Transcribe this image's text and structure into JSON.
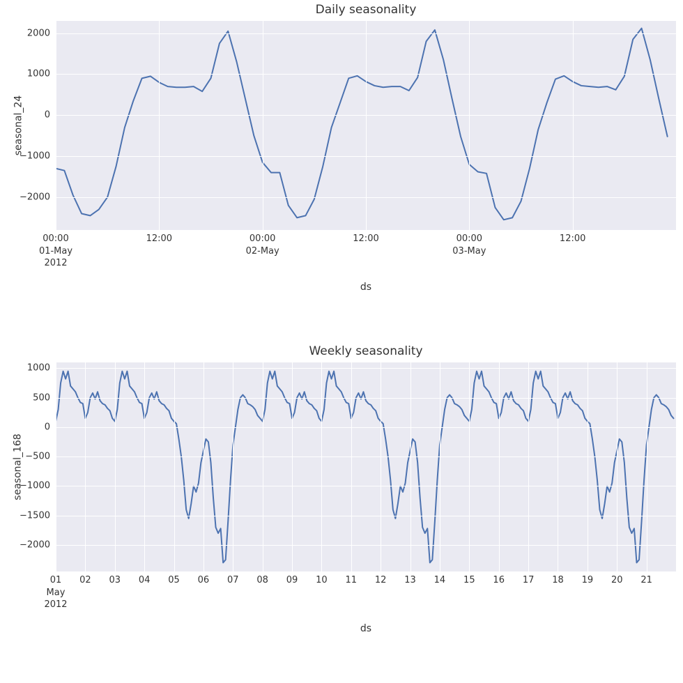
{
  "figure_width": 980,
  "figure_height": 980,
  "background_color": "#ffffff",
  "panel_background": "#eaeaf2",
  "grid_color": "#ffffff",
  "text_color": "#333333",
  "line_color": "#4c72b0",
  "line_width": 2.0,
  "font_family": "DejaVu Sans",
  "daily": {
    "type": "line",
    "title": "Daily seasonality",
    "title_fontsize": 17,
    "ylabel": "seasonal_24",
    "xlabel": "ds",
    "label_fontsize": 14,
    "ylim": [
      -2800,
      2300
    ],
    "yticks": [
      -2000,
      -1000,
      0,
      1000,
      2000
    ],
    "ytick_labels": [
      "−2000",
      "−1000",
      "0",
      "1000",
      "2000"
    ],
    "xlim_hours": [
      0,
      72
    ],
    "x_gridlines_hours": [
      0,
      12,
      24,
      36,
      48,
      60
    ],
    "xticks": [
      {
        "x_hours": 0,
        "label_lines": [
          "00:00",
          "01-May",
          "2012"
        ]
      },
      {
        "x_hours": 12,
        "label_lines": [
          "12:00"
        ]
      },
      {
        "x_hours": 24,
        "label_lines": [
          "00:00",
          "02-May"
        ]
      },
      {
        "x_hours": 36,
        "label_lines": [
          "12:00"
        ]
      },
      {
        "x_hours": 48,
        "label_lines": [
          "00:00",
          "03-May"
        ]
      },
      {
        "x_hours": 60,
        "label_lines": [
          "12:00"
        ]
      }
    ],
    "hourly_values": [
      -1300,
      -1350,
      -1950,
      -2400,
      -2450,
      -2300,
      -2000,
      -1250,
      -300,
      350,
      900,
      950,
      800,
      700,
      680,
      680,
      700,
      580,
      900,
      1750,
      2050,
      1300,
      400,
      -500,
      -1150,
      -1400,
      -1400,
      -2200,
      -2500,
      -2450,
      -2050,
      -1250,
      -300,
      300,
      900,
      960,
      820,
      720,
      680,
      700,
      700,
      600,
      920,
      1800,
      2080,
      1350,
      400,
      -520,
      -1200,
      -1380,
      -1420,
      -2250,
      -2550,
      -2500,
      -2100,
      -1300,
      -350,
      300,
      880,
      960,
      820,
      720,
      700,
      680,
      700,
      620,
      950,
      1850,
      2120,
      1350,
      400,
      -520
    ]
  },
  "weekly": {
    "type": "line",
    "title": "Weekly seasonality",
    "title_fontsize": 17,
    "ylabel": "seasonal_168",
    "xlabel": "ds",
    "label_fontsize": 14,
    "ylim": [
      -2450,
      1100
    ],
    "yticks": [
      -2000,
      -1500,
      -1000,
      -500,
      0,
      500,
      1000
    ],
    "ytick_labels": [
      "−2000",
      "−1500",
      "−1000",
      "−500",
      "0",
      "500",
      "1000"
    ],
    "xlim_days": [
      0,
      21
    ],
    "xticks": [
      {
        "x_days": 0,
        "label_lines": [
          "01",
          "May",
          "2012"
        ]
      },
      {
        "x_days": 1,
        "label_lines": [
          "02"
        ]
      },
      {
        "x_days": 2,
        "label_lines": [
          "03"
        ]
      },
      {
        "x_days": 3,
        "label_lines": [
          "04"
        ]
      },
      {
        "x_days": 4,
        "label_lines": [
          "05"
        ]
      },
      {
        "x_days": 5,
        "label_lines": [
          "06"
        ]
      },
      {
        "x_days": 6,
        "label_lines": [
          "07"
        ]
      },
      {
        "x_days": 7,
        "label_lines": [
          "08"
        ]
      },
      {
        "x_days": 8,
        "label_lines": [
          "09"
        ]
      },
      {
        "x_days": 9,
        "label_lines": [
          "10"
        ]
      },
      {
        "x_days": 10,
        "label_lines": [
          "11"
        ]
      },
      {
        "x_days": 11,
        "label_lines": [
          "12"
        ]
      },
      {
        "x_days": 12,
        "label_lines": [
          "13"
        ]
      },
      {
        "x_days": 13,
        "label_lines": [
          "14"
        ]
      },
      {
        "x_days": 14,
        "label_lines": [
          "15"
        ]
      },
      {
        "x_days": 15,
        "label_lines": [
          "16"
        ]
      },
      {
        "x_days": 16,
        "label_lines": [
          "17"
        ]
      },
      {
        "x_days": 17,
        "label_lines": [
          "18"
        ]
      },
      {
        "x_days": 18,
        "label_lines": [
          "19"
        ]
      },
      {
        "x_days": 19,
        "label_lines": [
          "20"
        ]
      },
      {
        "x_days": 20,
        "label_lines": [
          "21"
        ]
      }
    ],
    "day_profiles": {
      "weekday_high": [
        100,
        300,
        750,
        950,
        820,
        950,
        700,
        650,
        600,
        500,
        420,
        400
      ],
      "weekday_mid": [
        150,
        250,
        500,
        580,
        480,
        600,
        450,
        400,
        380,
        320,
        280,
        150
      ],
      "friday": [
        100,
        60,
        -200,
        -500,
        -900,
        -1400,
        -1550,
        -1300,
        -1000,
        -1100,
        -950,
        -600
      ],
      "saturday": [
        -400,
        -200,
        -250,
        -600,
        -1200,
        -1700,
        -1800,
        -1720,
        -2300,
        -2250,
        -1600,
        -900
      ],
      "sunday": [
        -300,
        0,
        300,
        500,
        550,
        500,
        400,
        380,
        350,
        300,
        200,
        150
      ]
    },
    "day_sequence": [
      "weekday_high",
      "weekday_mid",
      "weekday_high",
      "weekday_mid",
      "friday",
      "saturday",
      "sunday",
      "weekday_high",
      "weekday_mid",
      "weekday_high",
      "weekday_mid",
      "friday",
      "saturday",
      "sunday",
      "weekday_high",
      "weekday_mid",
      "weekday_high",
      "weekday_mid",
      "friday",
      "saturday",
      "sunday"
    ]
  }
}
